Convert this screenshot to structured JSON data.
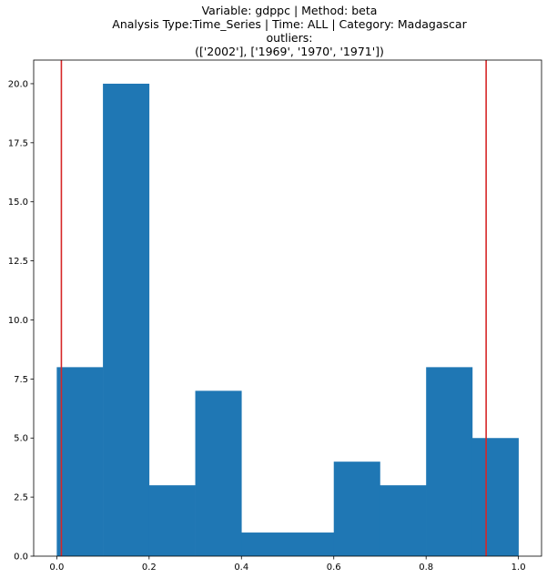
{
  "title_lines": [
    "Variable: gdppc | Method: beta",
    "Analysis Type:Time_Series | Time: ALL | Category: Madagascar",
    "outliers:",
    "(['2002'], ['1969', '1970', '1971'])"
  ],
  "chart_data": {
    "type": "bar",
    "title": "Variable: gdppc | Method: beta\nAnalysis Type:Time_Series | Time: ALL | Category: Madagascar\noutliers:\n(['2002'], ['1969', '1970', '1971'])",
    "xlabel": "",
    "ylabel": "",
    "bin_edges": [
      0.0,
      0.1,
      0.2,
      0.3,
      0.4,
      0.5,
      0.6,
      0.7,
      0.8,
      0.9,
      1.0
    ],
    "values": [
      8,
      20,
      3,
      7,
      1,
      1,
      4,
      3,
      8,
      5
    ],
    "xlim": [
      -0.05,
      1.05
    ],
    "ylim": [
      0,
      21
    ],
    "xticks": [
      0.0,
      0.2,
      0.4,
      0.6,
      0.8,
      1.0
    ],
    "xtick_labels": [
      "0.0",
      "0.2",
      "0.4",
      "0.6",
      "0.8",
      "1.0"
    ],
    "yticks": [
      0.0,
      2.5,
      5.0,
      7.5,
      10.0,
      12.5,
      15.0,
      17.5,
      20.0
    ],
    "ytick_labels": [
      "0.0",
      "2.5",
      "5.0",
      "7.5",
      "10.0",
      "12.5",
      "15.0",
      "17.5",
      "20.0"
    ],
    "vlines": [
      0.01,
      0.93
    ],
    "bar_color": "#1f77b4",
    "vline_color": "#d62728",
    "grid": false
  }
}
